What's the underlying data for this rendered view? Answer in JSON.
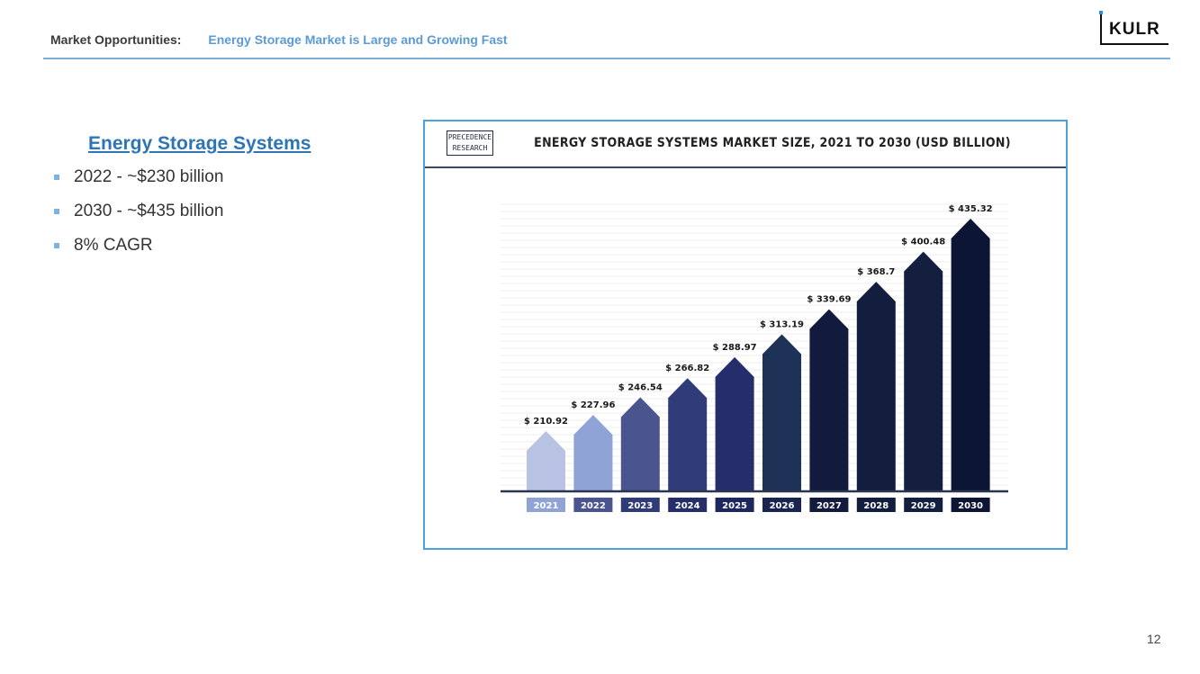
{
  "header": {
    "section": "Market Opportunities:",
    "subtitle": "Energy Storage Market is Large and Growing Fast"
  },
  "logo": {
    "text": "KULR"
  },
  "left_panel": {
    "title": "Energy Storage Systems",
    "bullets": [
      "2022 - ~$230 billion",
      "2030 - ~$435 billion",
      "8% CAGR"
    ]
  },
  "chart_source": {
    "line1": "PRECEDENCE",
    "line2": "RESEARCH"
  },
  "chart_data": {
    "type": "bar",
    "title": "ENERGY STORAGE SYSTEMS MARKET SIZE, 2021 TO 2030 (USD BILLION)",
    "categories": [
      "2021",
      "2022",
      "2023",
      "2024",
      "2025",
      "2026",
      "2027",
      "2028",
      "2029",
      "2030"
    ],
    "values": [
      210.92,
      227.96,
      246.54,
      266.82,
      288.97,
      313.19,
      339.69,
      368.7,
      400.48,
      435.32
    ],
    "data_labels": [
      "$ 210.92",
      "$ 227.96",
      "$ 246.54",
      "$ 266.82",
      "$ 288.97",
      "$ 313.19",
      "$ 339.69",
      "$ 368.7",
      "$ 400.48",
      "$ 435.32"
    ],
    "xlabel": "",
    "ylabel": "",
    "grid": true,
    "colors": [
      "#b8c3e4",
      "#8fa3d6",
      "#4a5590",
      "#303c79",
      "#252e6a",
      "#1e3258",
      "#121a3d",
      "#131d3e",
      "#141e3f",
      "#0c1533"
    ],
    "label_colors": [
      "#8fa3d6",
      "#4a5590",
      "#303c79",
      "#252e6a",
      "#1e2660",
      "#1a2450",
      "#121a3d",
      "#131d3e",
      "#141e3f",
      "#0c1533"
    ]
  },
  "page_number": "12"
}
